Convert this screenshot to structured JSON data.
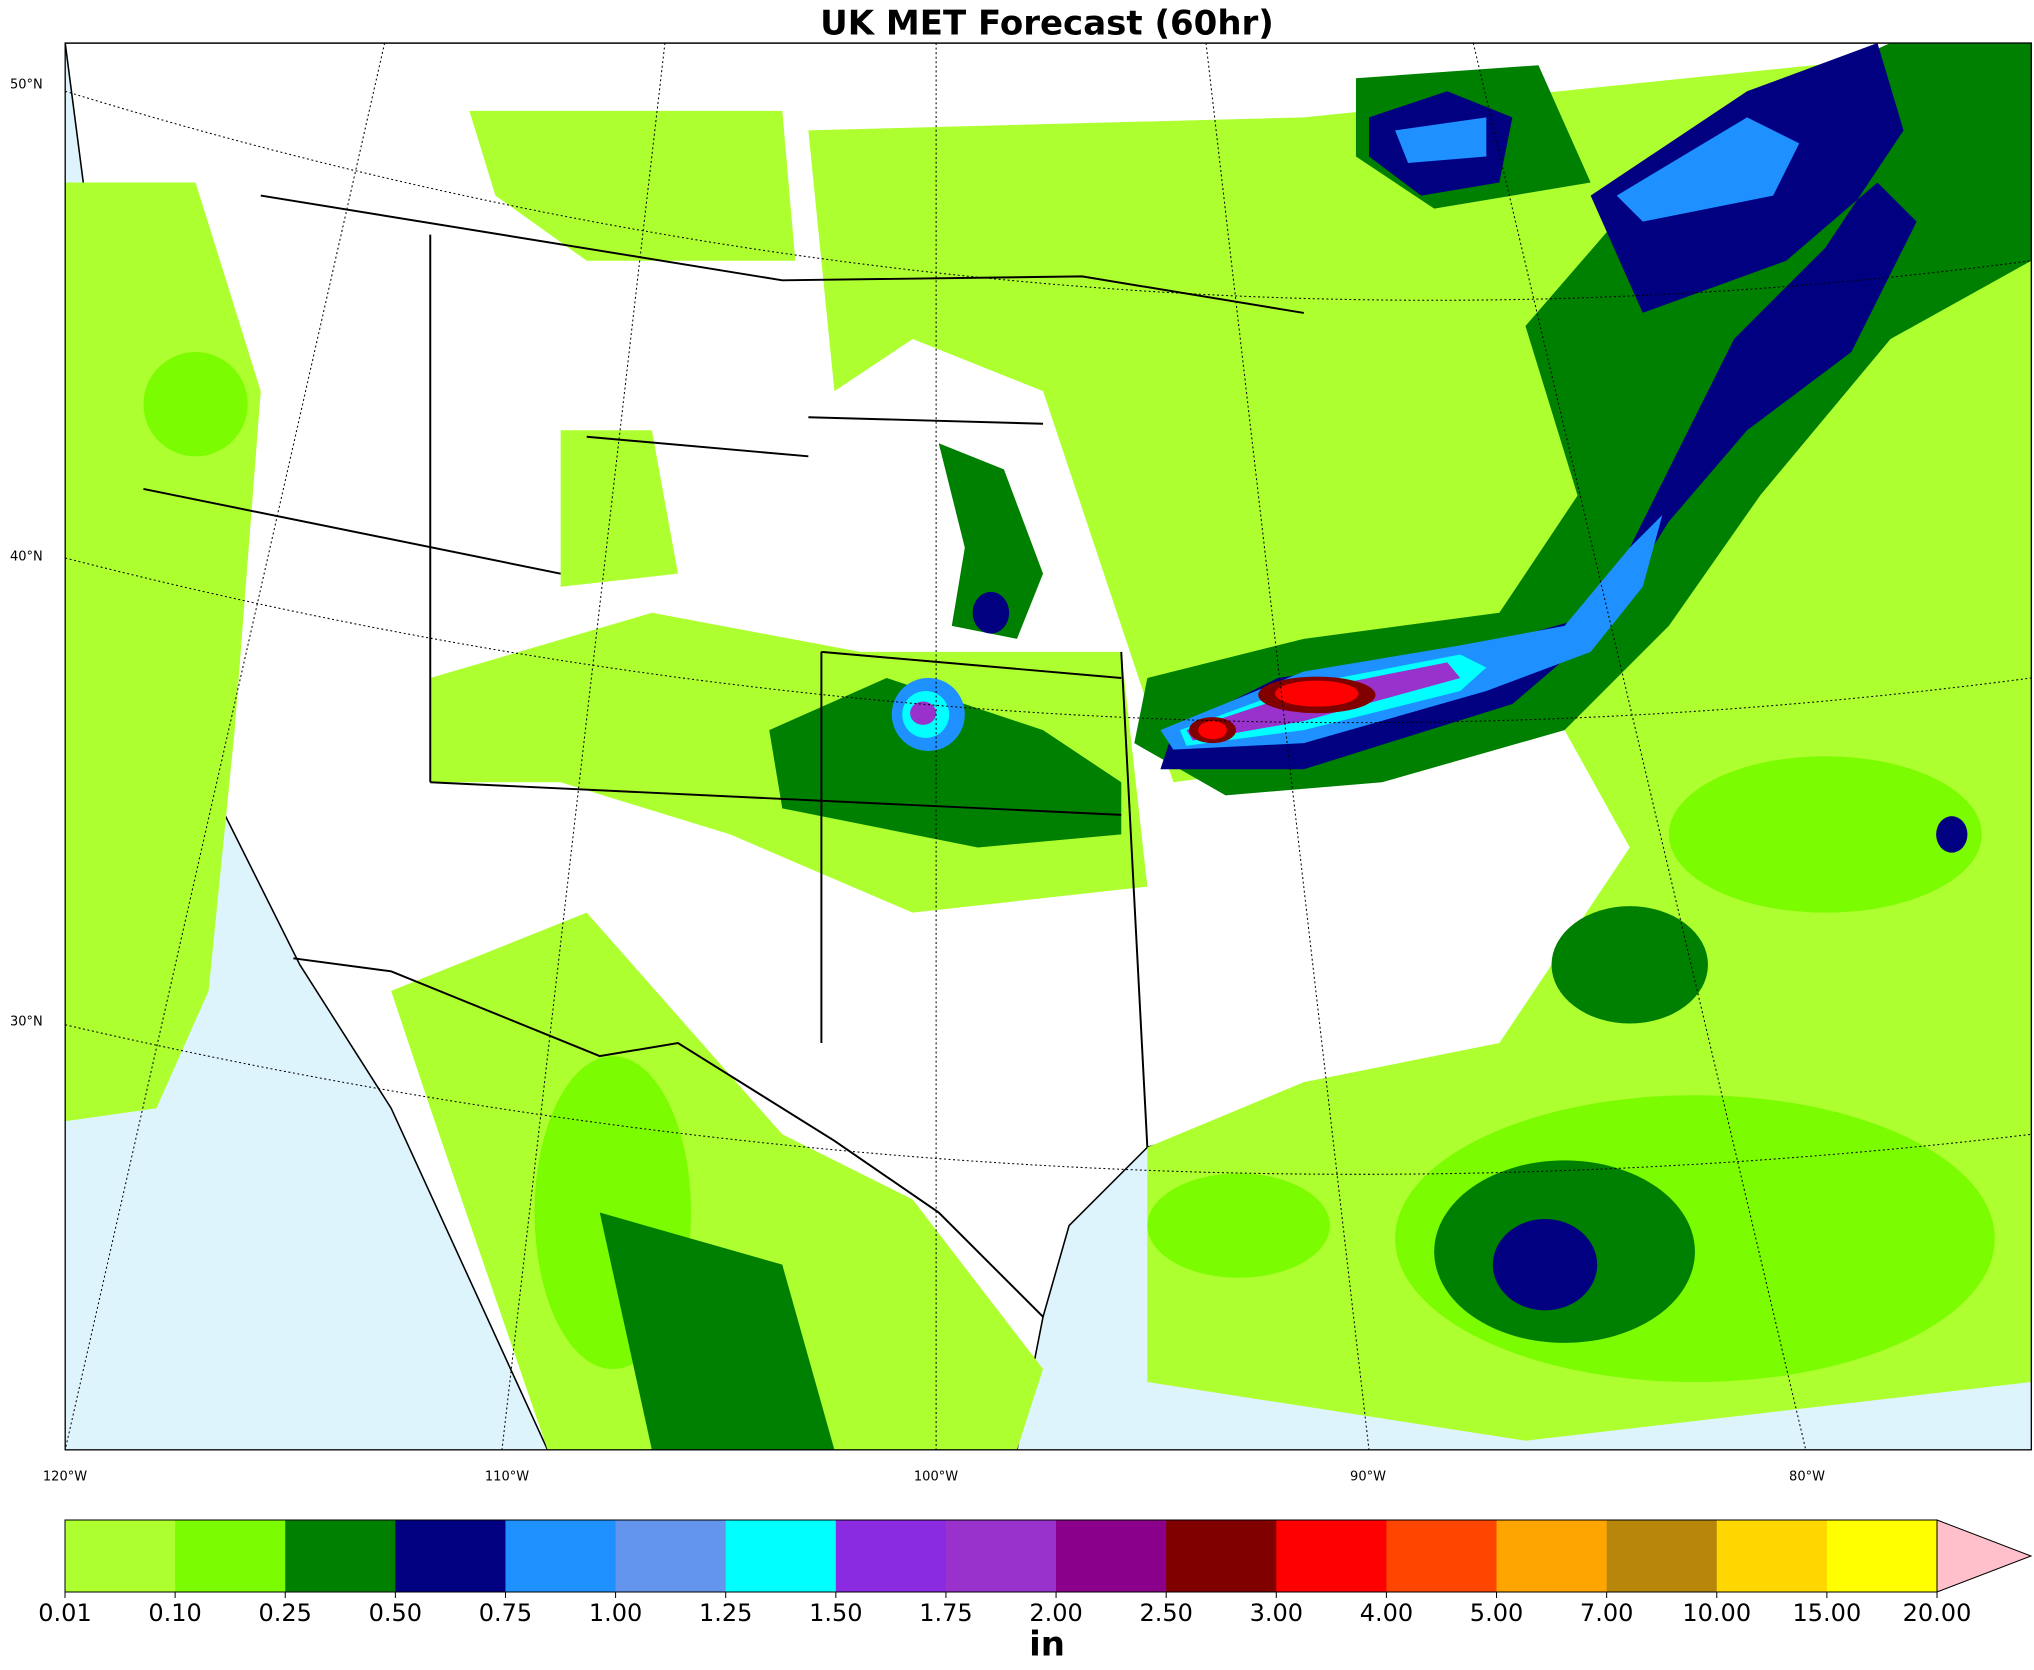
{
  "title": "UK MET Forecast (60hr)",
  "map": {
    "lat_labels": [
      "50°N",
      "40°N",
      "30°N"
    ],
    "lon_labels": [
      "120°W",
      "110°W",
      "100°W",
      "90°W",
      "80°W"
    ]
  },
  "colorbar": {
    "unit": "in",
    "ticks": [
      {
        "value": 0.01,
        "label": "0.01"
      },
      {
        "value": 0.1,
        "label": "0.10"
      },
      {
        "value": 0.25,
        "label": "0.25"
      },
      {
        "value": 0.5,
        "label": "0.50"
      },
      {
        "value": 0.75,
        "label": "0.75"
      },
      {
        "value": 1,
        "label": "1.00"
      },
      {
        "value": 1.25,
        "label": "1.25"
      },
      {
        "value": 1.5,
        "label": "1.50"
      },
      {
        "value": 1.75,
        "label": "1.75"
      },
      {
        "value": 2,
        "label": "2.00"
      },
      {
        "value": 2.5,
        "label": "2.50"
      },
      {
        "value": 3,
        "label": "3.00"
      },
      {
        "value": 4,
        "label": "4.00"
      },
      {
        "value": 5,
        "label": "5.00"
      },
      {
        "value": 7,
        "label": "7.00"
      },
      {
        "value": 10,
        "label": "10.00"
      },
      {
        "value": 15,
        "label": "15.00"
      },
      {
        "value": 20,
        "label": "20.00"
      }
    ],
    "colors": [
      "#adff2f",
      "#7cfc00",
      "#008000",
      "#000080",
      "#1e90ff",
      "#6495ed",
      "#00ffff",
      "#8a2be2",
      "#9932cc",
      "#8b008b",
      "#800000",
      "#ff0000",
      "#ff4500",
      "#ffa500",
      "#b8860b",
      "#ffd700",
      "#ffff00"
    ],
    "extend_color": "#ffc0cb"
  }
}
